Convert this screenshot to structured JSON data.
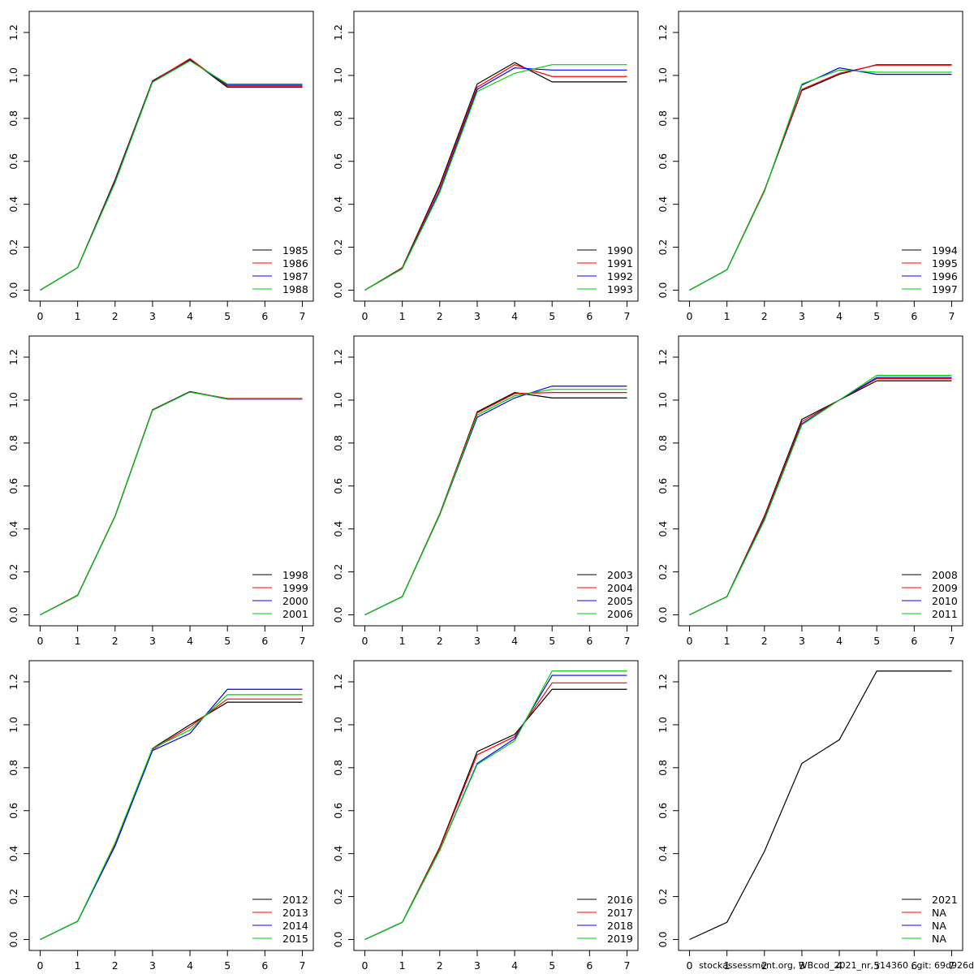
{
  "colors": [
    "#000000",
    "#df536b",
    "#2297e6",
    "#61d04f"
  ],
  "colors_r": [
    "#000000",
    "#ff0000",
    "#0000ff",
    "#00cd00"
  ],
  "footer": "stockassessment.org, WBcod_2021_nr, r14360 , git: 69d926d",
  "chart_data": [
    {
      "type": "line",
      "x": [
        0,
        1,
        2,
        3,
        4,
        5,
        6,
        7
      ],
      "ylim": [
        0,
        1.25
      ],
      "yticks": [
        "0.0",
        "0.2",
        "0.4",
        "0.6",
        "0.8",
        "1.0",
        "1.2"
      ],
      "xticks": [
        "0",
        "1",
        "2",
        "3",
        "4",
        "5",
        "6",
        "7"
      ],
      "series": [
        {
          "name": "1985",
          "values": [
            0,
            0.105,
            0.515,
            0.975,
            1.075,
            0.945,
            0.945,
            0.945
          ]
        },
        {
          "name": "1986",
          "values": [
            0,
            0.105,
            0.51,
            0.972,
            1.078,
            0.95,
            0.95,
            0.95
          ]
        },
        {
          "name": "1987",
          "values": [
            0,
            0.105,
            0.505,
            0.97,
            1.07,
            0.955,
            0.955,
            0.955
          ]
        },
        {
          "name": "1988",
          "values": [
            0,
            0.105,
            0.5,
            0.968,
            1.068,
            0.96,
            0.96,
            0.96
          ]
        }
      ]
    },
    {
      "type": "line",
      "x": [
        0,
        1,
        2,
        3,
        4,
        5,
        6,
        7
      ],
      "ylim": [
        0,
        1.25
      ],
      "yticks": [
        "0.0",
        "0.2",
        "0.4",
        "0.6",
        "0.8",
        "1.0",
        "1.2"
      ],
      "xticks": [
        "0",
        "1",
        "2",
        "3",
        "4",
        "5",
        "6",
        "7"
      ],
      "series": [
        {
          "name": "1990",
          "values": [
            0,
            0.105,
            0.49,
            0.96,
            1.06,
            0.97,
            0.97,
            0.97
          ]
        },
        {
          "name": "1991",
          "values": [
            0,
            0.103,
            0.48,
            0.945,
            1.05,
            0.995,
            0.995,
            0.995
          ]
        },
        {
          "name": "1992",
          "values": [
            0,
            0.1,
            0.465,
            0.935,
            1.035,
            1.025,
            1.025,
            1.025
          ]
        },
        {
          "name": "1993",
          "values": [
            0,
            0.1,
            0.455,
            0.925,
            1.01,
            1.05,
            1.05,
            1.05
          ]
        }
      ]
    },
    {
      "type": "line",
      "x": [
        0,
        1,
        2,
        3,
        4,
        5,
        6,
        7
      ],
      "ylim": [
        0,
        1.25
      ],
      "yticks": [
        "0.0",
        "0.2",
        "0.4",
        "0.6",
        "0.8",
        "1.0",
        "1.2"
      ],
      "xticks": [
        "0",
        "1",
        "2",
        "3",
        "4",
        "5",
        "6",
        "7"
      ],
      "series": [
        {
          "name": "1994",
          "values": [
            0,
            0.095,
            0.465,
            0.93,
            1.005,
            1.05,
            1.05,
            1.05
          ]
        },
        {
          "name": "1995",
          "values": [
            0,
            0.095,
            0.465,
            0.935,
            1.01,
            1.048,
            1.048,
            1.048
          ]
        },
        {
          "name": "1996",
          "values": [
            0,
            0.095,
            0.46,
            0.955,
            1.035,
            1.005,
            1.005,
            1.005
          ]
        },
        {
          "name": "1997",
          "values": [
            0,
            0.095,
            0.46,
            0.96,
            1.025,
            1.015,
            1.015,
            1.015
          ]
        }
      ]
    },
    {
      "type": "line",
      "x": [
        0,
        1,
        2,
        3,
        4,
        5,
        6,
        7
      ],
      "ylim": [
        0,
        1.25
      ],
      "yticks": [
        "0.0",
        "0.2",
        "0.4",
        "0.6",
        "0.8",
        "1.0",
        "1.2"
      ],
      "xticks": [
        "0",
        "1",
        "2",
        "3",
        "4",
        "5",
        "6",
        "7"
      ],
      "series": [
        {
          "name": "1998",
          "values": [
            0,
            0.09,
            0.46,
            0.955,
            1.04,
            1.005,
            1.005,
            1.005
          ]
        },
        {
          "name": "1999",
          "values": [
            0,
            0.092,
            0.46,
            0.955,
            1.038,
            1.008,
            1.008,
            1.008
          ]
        },
        {
          "name": "2000",
          "values": [
            0,
            0.09,
            0.458,
            0.953,
            1.038,
            1.005,
            1.005,
            1.005
          ]
        },
        {
          "name": "2001",
          "values": [
            0,
            0.09,
            0.458,
            0.952,
            1.037,
            1.006,
            1.006,
            1.006
          ]
        }
      ]
    },
    {
      "type": "line",
      "x": [
        0,
        1,
        2,
        3,
        4,
        5,
        6,
        7
      ],
      "ylim": [
        0,
        1.25
      ],
      "yticks": [
        "0.0",
        "0.2",
        "0.4",
        "0.6",
        "0.8",
        "1.0",
        "1.2"
      ],
      "xticks": [
        "0",
        "1",
        "2",
        "3",
        "4",
        "5",
        "6",
        "7"
      ],
      "series": [
        {
          "name": "2003",
          "values": [
            0,
            0.085,
            0.47,
            0.945,
            1.035,
            1.01,
            1.01,
            1.01
          ]
        },
        {
          "name": "2004",
          "values": [
            0,
            0.085,
            0.468,
            0.94,
            1.03,
            1.035,
            1.035,
            1.035
          ]
        },
        {
          "name": "2005",
          "values": [
            0,
            0.085,
            0.465,
            0.92,
            1.01,
            1.065,
            1.065,
            1.065
          ]
        },
        {
          "name": "2006",
          "values": [
            0,
            0.085,
            0.465,
            0.93,
            1.02,
            1.05,
            1.05,
            1.05
          ]
        }
      ]
    },
    {
      "type": "line",
      "x": [
        0,
        1,
        2,
        3,
        4,
        5,
        6,
        7
      ],
      "ylim": [
        0,
        1.25
      ],
      "yticks": [
        "0.0",
        "0.2",
        "0.4",
        "0.6",
        "0.8",
        "1.0",
        "1.2"
      ],
      "xticks": [
        "0",
        "1",
        "2",
        "3",
        "4",
        "5",
        "6",
        "7"
      ],
      "series": [
        {
          "name": "2008",
          "values": [
            0,
            0.085,
            0.46,
            0.91,
            1.0,
            1.09,
            1.09,
            1.09
          ]
        },
        {
          "name": "2009",
          "values": [
            0,
            0.085,
            0.455,
            0.9,
            1.0,
            1.1,
            1.1,
            1.1
          ]
        },
        {
          "name": "2010",
          "values": [
            0,
            0.085,
            0.445,
            0.89,
            1.0,
            1.105,
            1.105,
            1.105
          ]
        },
        {
          "name": "2011",
          "values": [
            0,
            0.085,
            0.44,
            0.885,
            1.0,
            1.115,
            1.115,
            1.115
          ]
        }
      ]
    },
    {
      "type": "line",
      "x": [
        0,
        1,
        2,
        3,
        4,
        5,
        6,
        7
      ],
      "ylim": [
        0,
        1.25
      ],
      "yticks": [
        "0.0",
        "0.2",
        "0.4",
        "0.6",
        "0.8",
        "1.0",
        "1.2"
      ],
      "xticks": [
        "0",
        "1",
        "2",
        "3",
        "4",
        "5",
        "6",
        "7"
      ],
      "series": [
        {
          "name": "2012",
          "values": [
            0,
            0.085,
            0.44,
            0.89,
            1.0,
            1.105,
            1.105,
            1.105
          ]
        },
        {
          "name": "2013",
          "values": [
            0,
            0.085,
            0.44,
            0.885,
            0.99,
            1.12,
            1.12,
            1.12
          ]
        },
        {
          "name": "2014",
          "values": [
            0,
            0.085,
            0.435,
            0.88,
            0.96,
            1.165,
            1.165,
            1.165
          ]
        },
        {
          "name": "2015",
          "values": [
            0,
            0.085,
            0.45,
            0.89,
            0.975,
            1.14,
            1.14,
            1.14
          ]
        }
      ]
    },
    {
      "type": "line",
      "x": [
        0,
        1,
        2,
        3,
        4,
        5,
        6,
        7
      ],
      "ylim": [
        0,
        1.25
      ],
      "yticks": [
        "0.0",
        "0.2",
        "0.4",
        "0.6",
        "0.8",
        "1.0",
        "1.2"
      ],
      "xticks": [
        "0",
        "1",
        "2",
        "3",
        "4",
        "5",
        "6",
        "7"
      ],
      "series": [
        {
          "name": "2016",
          "values": [
            0,
            0.08,
            0.43,
            0.875,
            0.955,
            1.165,
            1.165,
            1.165
          ]
        },
        {
          "name": "2017",
          "values": [
            0,
            0.08,
            0.425,
            0.86,
            0.945,
            1.195,
            1.195,
            1.195
          ]
        },
        {
          "name": "2018",
          "values": [
            0,
            0.08,
            0.415,
            0.82,
            0.935,
            1.23,
            1.23,
            1.23
          ]
        },
        {
          "name": "2019",
          "values": [
            0,
            0.08,
            0.415,
            0.815,
            0.925,
            1.25,
            1.25,
            1.25
          ]
        }
      ]
    },
    {
      "type": "line",
      "x": [
        0,
        1,
        2,
        3,
        4,
        5,
        6,
        7
      ],
      "ylim": [
        0,
        1.25
      ],
      "yticks": [
        "0.0",
        "0.2",
        "0.4",
        "0.6",
        "0.8",
        "1.0",
        "1.2"
      ],
      "xticks": [
        "0",
        "1",
        "2",
        "3",
        "4",
        "5",
        "6",
        "7"
      ],
      "series": [
        {
          "name": "2021",
          "values": [
            0,
            0.08,
            0.41,
            0.82,
            0.93,
            1.25,
            1.25,
            1.25
          ]
        },
        {
          "name": "NA",
          "values": null
        },
        {
          "name": "NA",
          "values": null
        },
        {
          "name": "NA",
          "values": null
        }
      ]
    }
  ]
}
